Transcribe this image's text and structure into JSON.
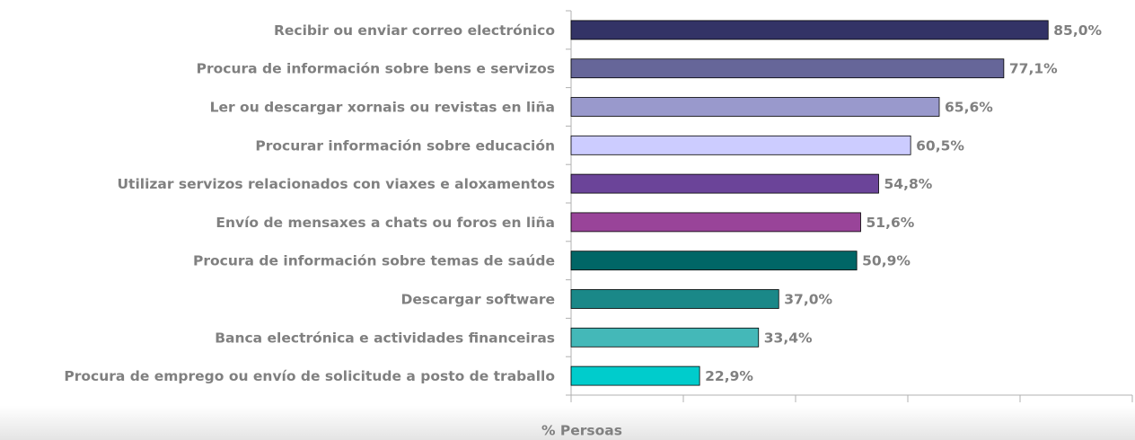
{
  "chart_data": {
    "type": "bar",
    "orientation": "horizontal",
    "x_label": "% Persoas",
    "categories": [
      "Recibir ou enviar correo electrónico",
      "Procura de información sobre bens e servizos",
      "Ler ou descargar xornais ou revistas en liña",
      "Procurar información sobre educación",
      "Utilizar servizos relacionados con viaxes e aloxamentos",
      "Envío de mensaxes a chats ou foros en liña",
      "Procura de información sobre temas de saúde",
      "Descargar software",
      "Banca electrónica e actividades financeiras",
      "Procura de emprego ou envío de solicitude a posto de traballo"
    ],
    "values": [
      85.0,
      77.1,
      65.6,
      60.5,
      54.8,
      51.6,
      50.9,
      37.0,
      33.4,
      22.9
    ],
    "value_labels": [
      "85,0%",
      "77,1%",
      "65,6%",
      "60,5%",
      "54,8%",
      "51,6%",
      "50,9%",
      "37,0%",
      "33,4%",
      "22,9%"
    ],
    "colors": [
      "#333366",
      "#666699",
      "#9999cc",
      "#ccccff",
      "#6b4499",
      "#994499",
      "#006666",
      "#1a8888",
      "#44b8b8",
      "#00cccc"
    ],
    "xlim": [
      0,
      100
    ],
    "xticks": [
      0,
      20,
      40,
      60,
      80,
      100
    ]
  }
}
